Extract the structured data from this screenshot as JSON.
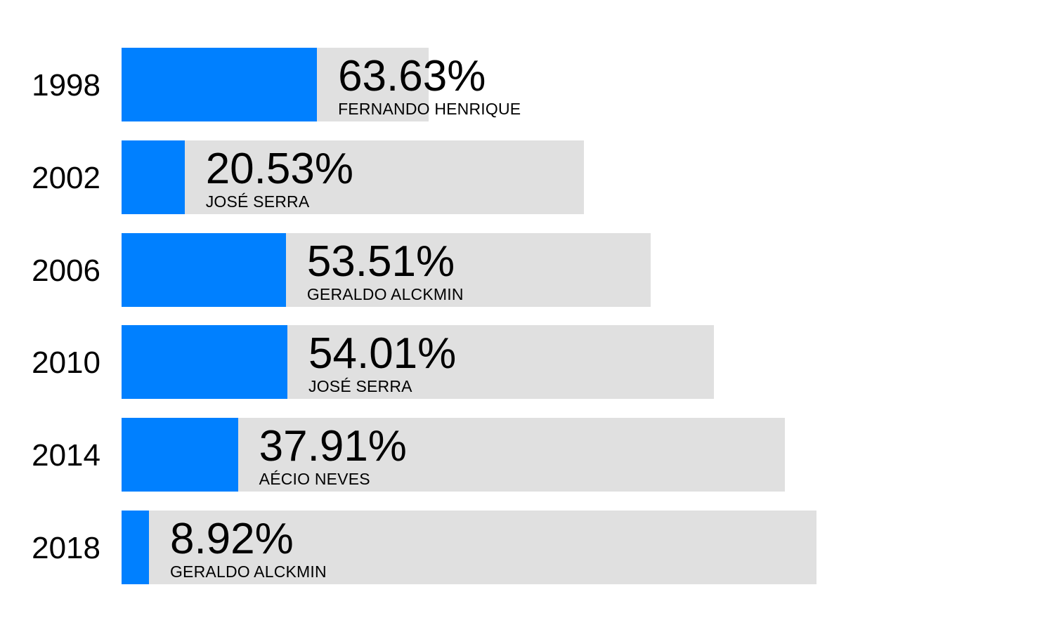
{
  "chart_data": {
    "type": "bar",
    "orientation": "horizontal",
    "categories": [
      "1998",
      "2002",
      "2006",
      "2010",
      "2014",
      "2018"
    ],
    "series": [
      {
        "values": [
          63.63,
          20.53,
          53.51,
          54.01,
          37.91,
          8.92
        ],
        "value_labels": [
          "63.63%",
          "20.53%",
          "53.51%",
          "54.01%",
          "37.91%",
          "8.92%"
        ],
        "candidates": [
          "FERNANDO HENRIQUE",
          "JOSÉ SERRA",
          "GERALDO ALCKMIN",
          "JOSÉ SERRA",
          "AÉCIO NEVES",
          "GERALDO ALCKMIN"
        ]
      }
    ],
    "title": "",
    "xlabel": "",
    "ylabel": "",
    "grid": false,
    "legend": "none"
  },
  "colors": {
    "bar_fill": "#0080ff",
    "bar_background": "#e0e0e0",
    "text": "#000000"
  }
}
